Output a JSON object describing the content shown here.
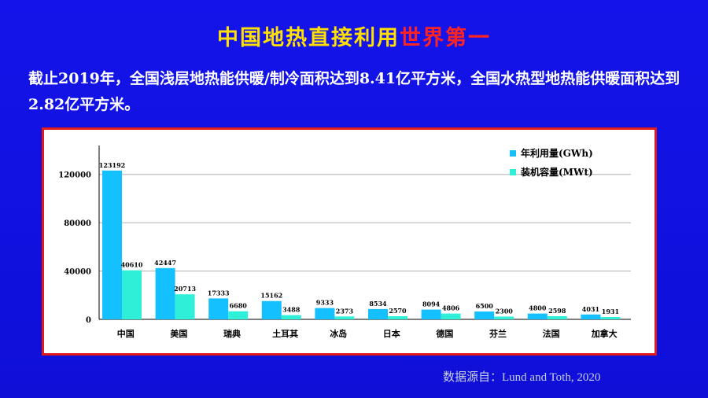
{
  "slide": {
    "title_part1": "中国地热直接利用",
    "title_part2": "世界第一",
    "body_text": "截止2019年，全国浅层地热能供暖/制冷面积达到8.41亿平方米，全国水热型地热能供暖面积达到2.82亿平方米。",
    "source": "数据源自：Lund and Toth, 2020",
    "colors": {
      "title_yellow": "#ffe000",
      "title_red": "#ff2424",
      "background": "#1414ea",
      "frame": "#e01919"
    }
  },
  "chart_data": {
    "type": "bar",
    "categories": [
      "中国",
      "美国",
      "瑞典",
      "土耳其",
      "冰岛",
      "日本",
      "德国",
      "芬兰",
      "法国",
      "加拿大"
    ],
    "series": [
      {
        "name": "年利用量(GWh)",
        "color": "#14c0ff",
        "values": [
          123192,
          42447,
          17333,
          15162,
          9333,
          8534,
          8094,
          6500,
          4800,
          4031
        ]
      },
      {
        "name": "装机容量(MWt)",
        "color": "#2ef0d8",
        "values": [
          40610,
          20713,
          6680,
          3488,
          2373,
          2570,
          4806,
          2300,
          2598,
          1931
        ]
      }
    ],
    "yticks": [
      0,
      40000,
      80000,
      120000
    ],
    "ylim": [
      0,
      140000
    ],
    "grid": true,
    "legend": "top-right",
    "title": "",
    "xlabel": "",
    "ylabel": ""
  }
}
